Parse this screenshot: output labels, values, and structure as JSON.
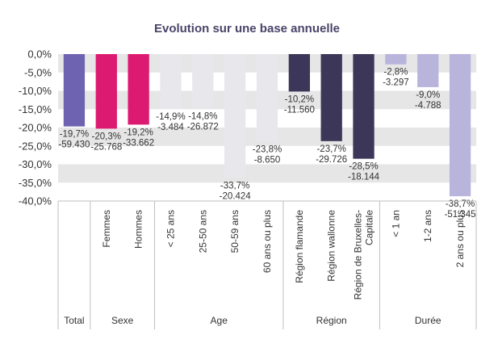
{
  "chart_data": {
    "type": "bar",
    "title": "Evolution sur une base annuelle",
    "ylim": [
      -40,
      0
    ],
    "yticks": [
      0,
      -5,
      -10,
      -15,
      -20,
      -25,
      -30,
      -35,
      -40
    ],
    "ytick_labels": [
      "0,0%",
      "-5,0%",
      "-10,0%",
      "-15,0%",
      "-20,0%",
      "-25,0%",
      "-30,0%",
      "-35,0%",
      "-40,0%"
    ],
    "grid": "striped",
    "categories": [
      {
        "group": 0,
        "label": [
          ""
        ],
        "value": -19.7,
        "pct_label": "-19,7%",
        "abs_label": "-59.430",
        "color": "#6e63b0"
      },
      {
        "group": 1,
        "label": [
          "Femmes"
        ],
        "value": -20.3,
        "pct_label": "-20,3%",
        "abs_label": "-25.768",
        "color": "#dd1a72"
      },
      {
        "group": 1,
        "label": [
          "Hommes"
        ],
        "value": -19.2,
        "pct_label": "-19,2%",
        "abs_label": "-33.662",
        "color": "#dd1a72"
      },
      {
        "group": 2,
        "label": [
          "< 25 ans"
        ],
        "value": -14.9,
        "pct_label": "-14,9%",
        "abs_label": "-3.484",
        "color": "#e8e8ec"
      },
      {
        "group": 2,
        "label": [
          "25-50 ans"
        ],
        "value": -14.8,
        "pct_label": "-14,8%",
        "abs_label": "-26.872",
        "color": "#e8e8ec"
      },
      {
        "group": 2,
        "label": [
          "50-59 ans"
        ],
        "value": -33.7,
        "pct_label": "-33,7%",
        "abs_label": "-20.424",
        "color": "#e8e8ec"
      },
      {
        "group": 2,
        "label": [
          "60  ans ou plus"
        ],
        "value": -23.8,
        "pct_label": "-23,8%",
        "abs_label": "-8.650",
        "color": "#e8e8ec"
      },
      {
        "group": 3,
        "label": [
          "Région flamande"
        ],
        "value": -10.2,
        "pct_label": "-10,2%",
        "abs_label": "-11.560",
        "color": "#3c3758"
      },
      {
        "group": 3,
        "label": [
          "Région wallonne"
        ],
        "value": -23.7,
        "pct_label": "-23,7%",
        "abs_label": "-29.726",
        "color": "#3c3758"
      },
      {
        "group": 3,
        "label": [
          "Région de Bruxelles-",
          "Capitale"
        ],
        "value": -28.5,
        "pct_label": "-28,5%",
        "abs_label": "-18.144",
        "color": "#3c3758"
      },
      {
        "group": 4,
        "label": [
          "< 1 an"
        ],
        "value": -2.8,
        "pct_label": "-2,8%",
        "abs_label": "-3.297",
        "color": "#b9b4dc"
      },
      {
        "group": 4,
        "label": [
          "1-2 ans"
        ],
        "value": -9.0,
        "pct_label": "-9,0%",
        "abs_label": "-4.788",
        "color": "#b9b4dc"
      },
      {
        "group": 4,
        "label": [
          "2 ans ou plus"
        ],
        "value": -38.7,
        "pct_label": "-38,7%",
        "abs_label": "-51.345",
        "color": "#b9b4dc"
      }
    ],
    "groups": [
      "Total",
      "Sexe",
      "Age",
      "Région",
      "Durée"
    ]
  }
}
